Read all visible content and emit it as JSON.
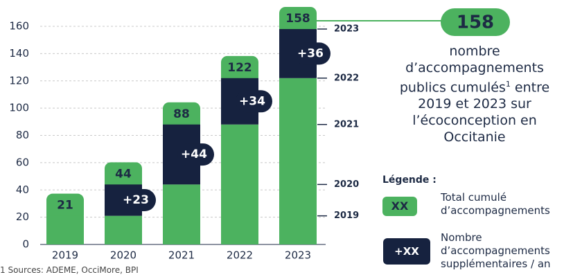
{
  "chart_data": {
    "type": "bar",
    "categories": [
      "2019",
      "2020",
      "2021",
      "2022",
      "2023"
    ],
    "series": [
      {
        "name": "Total cumulé d’accompagnements",
        "color": "#4cb25f",
        "values": [
          21,
          21,
          44,
          88,
          122
        ]
      },
      {
        "name": "Nombre d’accompagnements supplémentaires / an",
        "color": "#16223f",
        "values": [
          null,
          23,
          44,
          34,
          36
        ],
        "value_labels": [
          null,
          "+23",
          "+44",
          "+34",
          "+36"
        ]
      }
    ],
    "totals": [
      21,
      44,
      88,
      122,
      158
    ],
    "ylim": [
      0,
      160
    ],
    "yticks": [
      0,
      20,
      40,
      60,
      80,
      100,
      120,
      140,
      160
    ],
    "grid": true,
    "callout": {
      "prefix": "nombre d’accompagnements publics cumulés",
      "footnote_ref": "1",
      "suffix": " entre 2019 et 2023 sur l’écoconception en Occitanie"
    },
    "legend": {
      "title": "Légende :",
      "samples": [
        "XX",
        "+XX"
      ]
    },
    "footnote": {
      "mark": "1",
      "text": "Sources: ADEME, OcciMore, BPI"
    }
  }
}
